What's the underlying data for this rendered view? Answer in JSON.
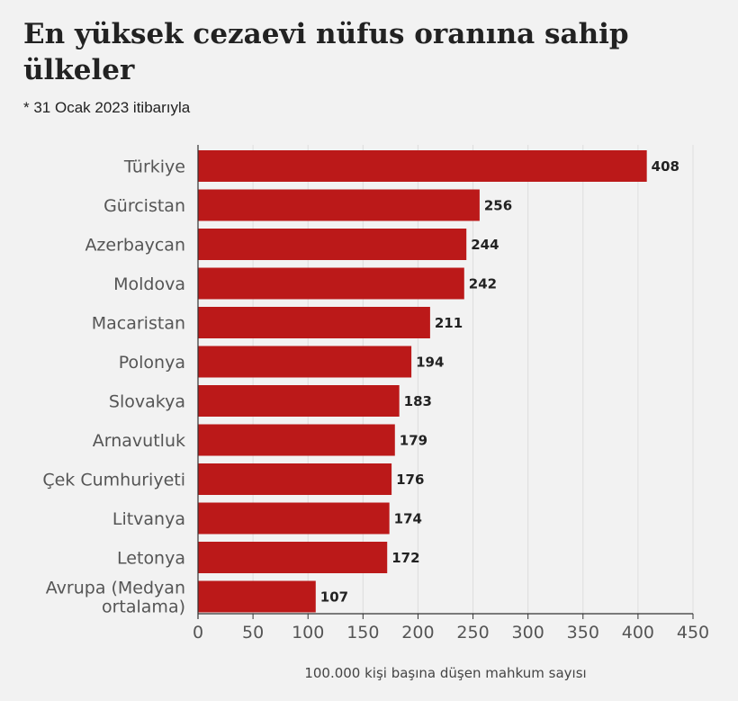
{
  "chart_data": {
    "type": "bar",
    "orientation": "horizontal",
    "title": "En yüksek cezaevi nüfus oranına sahip ülkeler",
    "subtitle": "* 31 Ocak 2023 itibarıyla",
    "xlabel": "100.000 kişi başına düşen mahkum sayısı",
    "ylabel": "",
    "categories": [
      [
        "Türkiye"
      ],
      [
        "Gürcistan"
      ],
      [
        "Azerbaycan"
      ],
      [
        "Moldova"
      ],
      [
        "Macaristan"
      ],
      [
        "Polonya"
      ],
      [
        "Slovakya"
      ],
      [
        "Arnavutluk"
      ],
      [
        "Çek Cumhuriyeti"
      ],
      [
        "Litvanya"
      ],
      [
        "Letonya"
      ],
      [
        "Avrupa (Medyan",
        "ortalama)"
      ]
    ],
    "values": [
      408,
      256,
      244,
      242,
      211,
      194,
      183,
      179,
      176,
      174,
      172,
      107
    ],
    "xlim": [
      0,
      450
    ],
    "xticks": [
      0,
      50,
      100,
      150,
      200,
      250,
      300,
      350,
      400,
      450
    ],
    "grid": "vertical",
    "bar_color": "#bb1919",
    "grid_color": "#dddddd",
    "axis_color": "#333333"
  }
}
